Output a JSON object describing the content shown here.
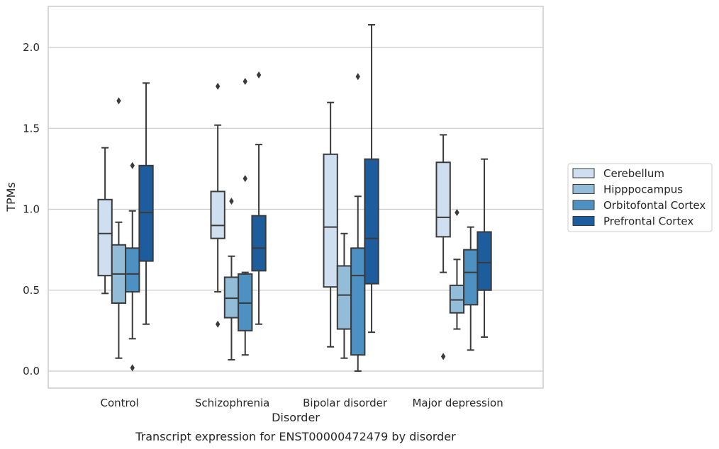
{
  "chart_data": {
    "type": "box",
    "caption": "Transcript expression for ENST00000472479 by disorder",
    "xlabel": "Disorder",
    "ylabel": "TPMs",
    "ylim": [
      -0.1,
      2.25
    ],
    "yticks": [
      "0.0",
      "0.5",
      "1.0",
      "1.5",
      "2.0"
    ],
    "grid": true,
    "legend_position": "right",
    "categories": [
      "Control",
      "Schizophrenia",
      "Bipolar disorder",
      "Major depression"
    ],
    "series": [
      {
        "name": "Cerebellum",
        "color": "#cfdff0",
        "boxes": [
          {
            "whislo": 0.48,
            "q1": 0.59,
            "med": 0.85,
            "q3": 1.06,
            "whishi": 1.38,
            "fliers": []
          },
          {
            "whislo": 0.49,
            "q1": 0.82,
            "med": 0.9,
            "q3": 1.11,
            "whishi": 1.52,
            "fliers": [
              0.29,
              1.76
            ]
          },
          {
            "whislo": 0.15,
            "q1": 0.52,
            "med": 0.89,
            "q3": 1.34,
            "whishi": 1.66,
            "fliers": []
          },
          {
            "whislo": 0.61,
            "q1": 0.83,
            "med": 0.95,
            "q3": 1.29,
            "whishi": 1.46,
            "fliers": [
              0.09
            ]
          }
        ]
      },
      {
        "name": "Hipppocampus",
        "color": "#93bcd9",
        "boxes": [
          {
            "whislo": 0.08,
            "q1": 0.42,
            "med": 0.6,
            "q3": 0.78,
            "whishi": 0.92,
            "fliers": [
              1.67
            ]
          },
          {
            "whislo": 0.07,
            "q1": 0.33,
            "med": 0.45,
            "q3": 0.58,
            "whishi": 0.71,
            "fliers": [
              1.05
            ]
          },
          {
            "whislo": 0.08,
            "q1": 0.26,
            "med": 0.47,
            "q3": 0.65,
            "whishi": 0.85,
            "fliers": []
          },
          {
            "whislo": 0.26,
            "q1": 0.36,
            "med": 0.44,
            "q3": 0.53,
            "whishi": 0.69,
            "fliers": [
              0.98
            ]
          }
        ]
      },
      {
        "name": "Orbitofontal Cortex",
        "color": "#4d91c2",
        "boxes": [
          {
            "whislo": 0.2,
            "q1": 0.49,
            "med": 0.6,
            "q3": 0.76,
            "whishi": 0.99,
            "fliers": [
              0.02,
              1.27
            ]
          },
          {
            "whislo": 0.1,
            "q1": 0.25,
            "med": 0.42,
            "q3": 0.6,
            "whishi": 0.61,
            "fliers": [
              1.19,
              1.79
            ]
          },
          {
            "whislo": 0.0,
            "q1": 0.1,
            "med": 0.59,
            "q3": 0.76,
            "whishi": 1.08,
            "fliers": [
              1.82
            ]
          },
          {
            "whislo": 0.13,
            "q1": 0.41,
            "med": 0.61,
            "q3": 0.75,
            "whishi": 0.89,
            "fliers": []
          }
        ]
      },
      {
        "name": "Prefrontal Cortex",
        "color": "#1d5d9e",
        "boxes": [
          {
            "whislo": 0.29,
            "q1": 0.68,
            "med": 0.98,
            "q3": 1.27,
            "whishi": 1.78,
            "fliers": []
          },
          {
            "whislo": 0.29,
            "q1": 0.62,
            "med": 0.76,
            "q3": 0.96,
            "whishi": 1.4,
            "fliers": [
              1.83
            ]
          },
          {
            "whislo": 0.24,
            "q1": 0.54,
            "med": 0.82,
            "q3": 1.31,
            "whishi": 2.14,
            "fliers": []
          },
          {
            "whislo": 0.21,
            "q1": 0.5,
            "med": 0.67,
            "q3": 0.86,
            "whishi": 1.31,
            "fliers": []
          }
        ]
      }
    ]
  }
}
